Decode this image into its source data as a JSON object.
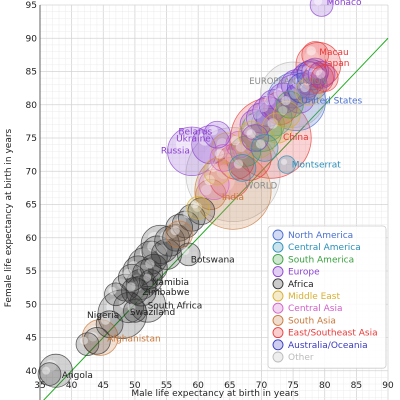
{
  "chart_data": {
    "type": "scatter",
    "title": "",
    "xlabel": "Male life expectancy at birth in years",
    "ylabel": "Female life expectancy at birth in years",
    "xlim": [
      35,
      90
    ],
    "ylim": [
      35,
      95
    ],
    "xticks": [
      35,
      40,
      45,
      50,
      55,
      60,
      65,
      70,
      75,
      80,
      85,
      90
    ],
    "yticks": [
      35,
      40,
      45,
      50,
      55,
      60,
      65,
      70,
      75,
      80,
      85,
      90,
      95
    ],
    "grid": true,
    "legend_position": "bottom-right",
    "reference_line": {
      "label": "",
      "from": [
        35,
        35
      ],
      "to": [
        90,
        90
      ],
      "color": "#22aa22"
    },
    "regions": [
      {
        "name": "North America",
        "color": "#4a6fd0"
      },
      {
        "name": "Central America",
        "color": "#2a8fb8"
      },
      {
        "name": "South America",
        "color": "#3aa040"
      },
      {
        "name": "Europe",
        "color": "#8a3fd0"
      },
      {
        "name": "Africa",
        "color": "#333333"
      },
      {
        "name": "Middle East",
        "color": "#d8b030"
      },
      {
        "name": "Central Asia",
        "color": "#d060c8"
      },
      {
        "name": "South Asia",
        "color": "#c8783a"
      },
      {
        "name": "East/Southeast Asia",
        "color": "#e83a3a"
      },
      {
        "name": "Australia/Oceania",
        "color": "#3a3ac0"
      },
      {
        "name": "Other",
        "color": "#bbbbbb"
      }
    ],
    "labeled_points": [
      {
        "label": "Monaco",
        "x": 79.5,
        "y": 95.0,
        "region": "Europe",
        "size": 2
      },
      {
        "label": "Macau",
        "x": 78.5,
        "y": 87.5,
        "region": "East/Southeast Asia",
        "size": 3
      },
      {
        "label": "Japan",
        "x": 79.0,
        "y": 86.0,
        "region": "East/Southeast Asia",
        "size": 10
      },
      {
        "label": "EUROPEAN UNION",
        "x": 75.0,
        "y": 81.5,
        "region": "Other",
        "size": 23
      },
      {
        "label": "United States",
        "x": 75.5,
        "y": 80.5,
        "region": "North America",
        "size": 18
      },
      {
        "label": "Belarus",
        "x": 63.0,
        "y": 75.5,
        "region": "Europe",
        "size": 3
      },
      {
        "label": "Ukraine",
        "x": 62.0,
        "y": 74.0,
        "region": "Europe",
        "size": 7
      },
      {
        "label": "Russia",
        "x": 59.0,
        "y": 73.0,
        "region": "Europe",
        "size": 12
      },
      {
        "label": "China",
        "x": 71.5,
        "y": 75.0,
        "region": "East/Southeast Asia",
        "size": 36
      },
      {
        "label": "Montserrat",
        "x": 74.0,
        "y": 71.0,
        "region": "Central America",
        "size": 1
      },
      {
        "label": "India",
        "x": 65.5,
        "y": 67.0,
        "region": "South Asia",
        "size": 32
      },
      {
        "label": "WORLD",
        "x": 65.5,
        "y": 69.5,
        "region": "Other",
        "size": 50
      },
      {
        "label": "Botswana",
        "x": 58.5,
        "y": 57.5,
        "region": "Africa",
        "size": 2
      },
      {
        "label": "Namibia",
        "x": 52.5,
        "y": 53.5,
        "region": "Africa",
        "size": 2
      },
      {
        "label": "Zimbabwe",
        "x": 51.0,
        "y": 52.0,
        "region": "Africa",
        "size": 4
      },
      {
        "label": "Nigeria",
        "x": 48.0,
        "y": 48.5,
        "region": "Africa",
        "size": 12
      },
      {
        "label": "South Africa",
        "x": 52.0,
        "y": 50.0,
        "region": "Africa",
        "size": 6
      },
      {
        "label": "Swaziland",
        "x": 50.0,
        "y": 49.0,
        "region": "Africa",
        "size": 2
      },
      {
        "label": "Afghanistan",
        "x": 44.5,
        "y": 45.0,
        "region": "South Asia",
        "size": 6
      },
      {
        "label": "Angola",
        "x": 37.5,
        "y": 40.0,
        "region": "Africa",
        "size": 5
      }
    ],
    "points": [
      {
        "x": 36.5,
        "y": 39.5,
        "region": "Africa",
        "size": 2
      },
      {
        "x": 42.5,
        "y": 44.0,
        "region": "Africa",
        "size": 2
      },
      {
        "x": 44.0,
        "y": 44.5,
        "region": "Africa",
        "size": 3
      },
      {
        "x": 46.0,
        "y": 47.0,
        "region": "Africa",
        "size": 3
      },
      {
        "x": 47.0,
        "y": 51.5,
        "region": "Africa",
        "size": 2
      },
      {
        "x": 48.5,
        "y": 52.5,
        "region": "Africa",
        "size": 3
      },
      {
        "x": 49.0,
        "y": 49.5,
        "region": "Africa",
        "size": 4
      },
      {
        "x": 49.5,
        "y": 54.0,
        "region": "Africa",
        "size": 3
      },
      {
        "x": 50.0,
        "y": 52.0,
        "region": "Africa",
        "size": 3
      },
      {
        "x": 50.5,
        "y": 55.0,
        "region": "Africa",
        "size": 4
      },
      {
        "x": 51.0,
        "y": 53.0,
        "region": "Africa",
        "size": 4
      },
      {
        "x": 51.5,
        "y": 56.0,
        "region": "Africa",
        "size": 5
      },
      {
        "x": 52.0,
        "y": 54.5,
        "region": "Africa",
        "size": 4
      },
      {
        "x": 52.5,
        "y": 57.0,
        "region": "Africa",
        "size": 5
      },
      {
        "x": 53.0,
        "y": 55.5,
        "region": "Africa",
        "size": 3
      },
      {
        "x": 53.5,
        "y": 58.0,
        "region": "Africa",
        "size": 4
      },
      {
        "x": 54.0,
        "y": 59.0,
        "region": "Africa",
        "size": 7
      },
      {
        "x": 55.0,
        "y": 57.5,
        "region": "Africa",
        "size": 4
      },
      {
        "x": 55.5,
        "y": 59.5,
        "region": "Africa",
        "size": 4
      },
      {
        "x": 56.5,
        "y": 60.0,
        "region": "Africa",
        "size": 3
      },
      {
        "x": 57.0,
        "y": 61.5,
        "region": "Africa",
        "size": 3
      },
      {
        "x": 58.0,
        "y": 62.0,
        "region": "Africa",
        "size": 3
      },
      {
        "x": 59.0,
        "y": 63.0,
        "region": "Africa",
        "size": 3
      },
      {
        "x": 60.5,
        "y": 64.0,
        "region": "Africa",
        "size": 3
      },
      {
        "x": 57.0,
        "y": 60.5,
        "region": "South Asia",
        "size": 3
      },
      {
        "x": 60.0,
        "y": 64.5,
        "region": "Middle East",
        "size": 2
      },
      {
        "x": 62.0,
        "y": 66.5,
        "region": "South Asia",
        "size": 4
      },
      {
        "x": 62.5,
        "y": 68.0,
        "region": "Central Asia",
        "size": 4
      },
      {
        "x": 63.0,
        "y": 70.0,
        "region": "Middle East",
        "size": 3
      },
      {
        "x": 64.0,
        "y": 72.0,
        "region": "Central Asia",
        "size": 3
      },
      {
        "x": 64.5,
        "y": 73.5,
        "region": "Middle East",
        "size": 4
      },
      {
        "x": 65.0,
        "y": 69.0,
        "region": "East/Southeast Asia",
        "size": 8
      },
      {
        "x": 66.0,
        "y": 71.5,
        "region": "East/Southeast Asia",
        "size": 6
      },
      {
        "x": 66.5,
        "y": 74.0,
        "region": "Central Asia",
        "size": 3
      },
      {
        "x": 67.0,
        "y": 70.5,
        "region": "Central America",
        "size": 3
      },
      {
        "x": 67.5,
        "y": 73.0,
        "region": "South America",
        "size": 4
      },
      {
        "x": 68.0,
        "y": 72.0,
        "region": "East/Southeast Asia",
        "size": 10
      },
      {
        "x": 68.5,
        "y": 75.5,
        "region": "Middle East",
        "size": 3
      },
      {
        "x": 69.0,
        "y": 75.0,
        "region": "Europe",
        "size": 3
      },
      {
        "x": 69.0,
        "y": 77.0,
        "region": "Europe",
        "size": 4
      },
      {
        "x": 69.5,
        "y": 74.5,
        "region": "Middle East",
        "size": 5
      },
      {
        "x": 70.0,
        "y": 76.0,
        "region": "South America",
        "size": 8
      },
      {
        "x": 70.0,
        "y": 78.0,
        "region": "Europe",
        "size": 4
      },
      {
        "x": 70.5,
        "y": 73.5,
        "region": "Central America",
        "size": 3
      },
      {
        "x": 71.0,
        "y": 77.0,
        "region": "South America",
        "size": 5
      },
      {
        "x": 71.0,
        "y": 79.0,
        "region": "Europe",
        "size": 4
      },
      {
        "x": 72.0,
        "y": 78.0,
        "region": "Central America",
        "size": 6
      },
      {
        "x": 72.0,
        "y": 80.0,
        "region": "Europe",
        "size": 4
      },
      {
        "x": 72.5,
        "y": 76.5,
        "region": "Middle East",
        "size": 4
      },
      {
        "x": 73.0,
        "y": 79.5,
        "region": "East/Southeast Asia",
        "size": 5
      },
      {
        "x": 73.5,
        "y": 81.0,
        "region": "Europe",
        "size": 4
      },
      {
        "x": 74.0,
        "y": 78.5,
        "region": "Middle East",
        "size": 3
      },
      {
        "x": 74.5,
        "y": 80.0,
        "region": "South America",
        "size": 3
      },
      {
        "x": 75.0,
        "y": 82.0,
        "region": "Europe",
        "size": 5
      },
      {
        "x": 75.5,
        "y": 83.0,
        "region": "Europe",
        "size": 4
      },
      {
        "x": 76.0,
        "y": 81.0,
        "region": "Europe",
        "size": 4
      },
      {
        "x": 76.5,
        "y": 82.5,
        "region": "Australia/Oceania",
        "size": 4
      },
      {
        "x": 77.0,
        "y": 83.5,
        "region": "Europe",
        "size": 5
      },
      {
        "x": 77.5,
        "y": 84.0,
        "region": "Europe",
        "size": 5
      },
      {
        "x": 77.5,
        "y": 82.0,
        "region": "Middle East",
        "size": 3
      },
      {
        "x": 78.0,
        "y": 84.5,
        "region": "Australia/Oceania",
        "size": 4
      },
      {
        "x": 78.0,
        "y": 83.0,
        "region": "North America",
        "size": 4
      },
      {
        "x": 78.5,
        "y": 85.0,
        "region": "Europe",
        "size": 3
      },
      {
        "x": 79.0,
        "y": 84.0,
        "region": "East/Southeast Asia",
        "size": 4
      },
      {
        "x": 79.5,
        "y": 84.5,
        "region": "Europe",
        "size": 3
      },
      {
        "x": 80.0,
        "y": 84.0,
        "region": "East/Southeast Asia",
        "size": 3
      }
    ]
  }
}
